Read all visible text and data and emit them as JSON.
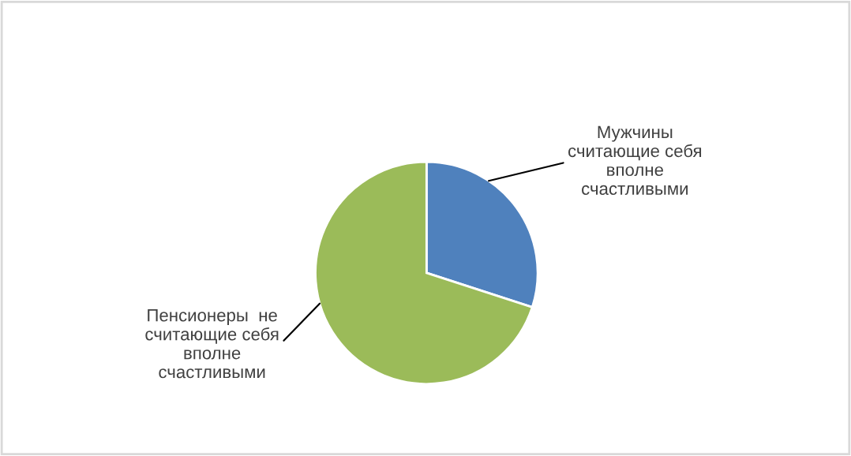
{
  "chart_data": {
    "type": "pie",
    "categories": [
      "Мужчины\nсчитающие себя\nвполне\nсчастливыми",
      "Пенсионеры  не\nсчитающие себя\nвполне\nсчастливыми"
    ],
    "values": [
      30,
      70
    ],
    "colors": [
      "#4f81bd",
      "#9bbb59"
    ],
    "legend": false
  }
}
